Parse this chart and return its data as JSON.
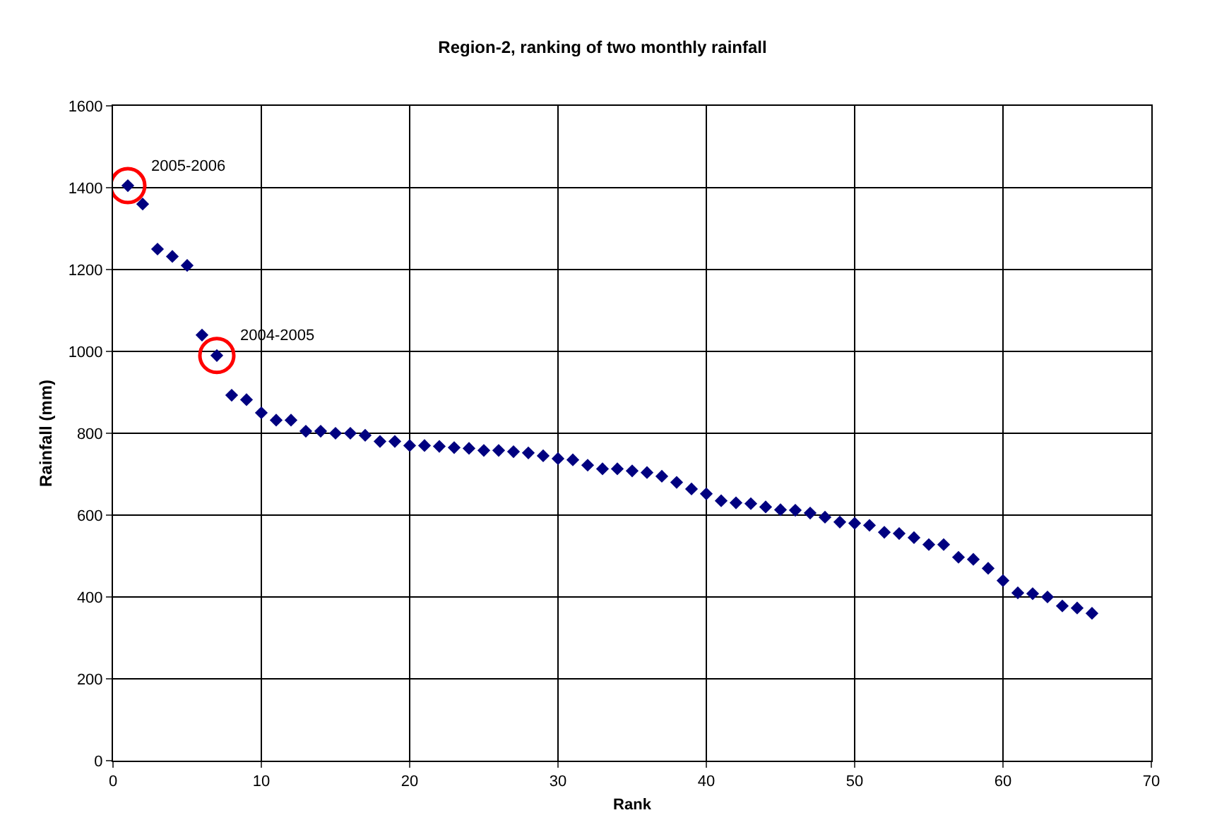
{
  "chart_data": {
    "type": "scatter",
    "title": "Region-2, ranking of two monthly rainfall",
    "xlabel": "Rank",
    "ylabel": "Rainfall (mm)",
    "x": [
      1,
      2,
      3,
      4,
      5,
      6,
      7,
      8,
      9,
      10,
      11,
      12,
      13,
      14,
      15,
      16,
      17,
      18,
      19,
      20,
      21,
      22,
      23,
      24,
      25,
      26,
      27,
      28,
      29,
      30,
      31,
      32,
      33,
      34,
      35,
      36,
      37,
      38,
      39,
      40,
      41,
      42,
      43,
      44,
      45,
      46,
      47,
      48,
      49,
      50,
      51,
      52,
      53,
      54,
      55,
      56,
      57,
      58,
      59,
      60,
      61,
      62,
      63,
      64,
      65,
      66
    ],
    "series": [
      {
        "color": "#000080",
        "values": [
          1405,
          1360,
          1250,
          1232,
          1210,
          1040,
          990,
          893,
          882,
          850,
          832,
          832,
          805,
          805,
          800,
          800,
          795,
          780,
          780,
          770,
          770,
          768,
          765,
          763,
          758,
          758,
          755,
          752,
          745,
          738,
          735,
          722,
          713,
          713,
          708,
          704,
          695,
          680,
          664,
          652,
          635,
          630,
          628,
          620,
          613,
          612,
          605,
          595,
          583,
          580,
          575,
          558,
          555,
          545,
          528,
          528,
          497,
          492,
          470,
          440,
          410,
          408,
          400,
          378,
          373,
          360
        ]
      }
    ],
    "xlim": [
      0,
      70
    ],
    "xticks": [
      0,
      10,
      20,
      30,
      40,
      50,
      60,
      70
    ],
    "ylim": [
      0,
      1600
    ],
    "yticks": [
      0,
      200,
      400,
      600,
      800,
      1000,
      1200,
      1400,
      1600
    ],
    "grid": true,
    "legend": false,
    "marker": "diamond",
    "annotations": [
      {
        "text": "2005-2006",
        "x": 1,
        "y": 1405
      },
      {
        "text": "2004-2005",
        "x": 7,
        "y": 990
      }
    ]
  }
}
